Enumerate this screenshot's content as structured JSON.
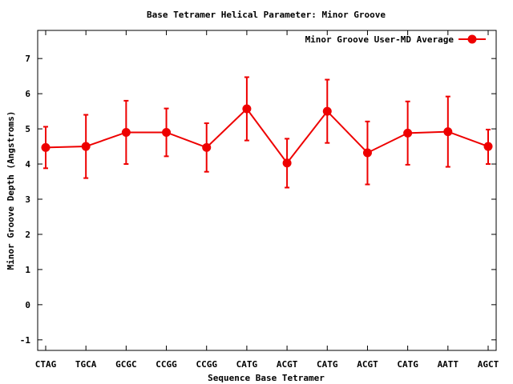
{
  "chart_data": {
    "type": "line",
    "title": "Base Tetramer Helical Parameter: Minor Groove",
    "xlabel": "Sequence Base Tetramer",
    "ylabel": "Minor Groove Depth (Angstroms)",
    "categories": [
      "CTAG",
      "TGCA",
      "GCGC",
      "CCGG",
      "CCGG",
      "CATG",
      "ACGT",
      "CATG",
      "ACGT",
      "CATG",
      "AATT",
      "AGCT"
    ],
    "ylim": [
      -1.3,
      7.8
    ],
    "yticks": [
      -1,
      0,
      1,
      2,
      3,
      4,
      5,
      6,
      7
    ],
    "grid": false,
    "legend_position": "top-right",
    "color": "#ee0000",
    "series": [
      {
        "name": "Minor Groove User-MD Average",
        "values": [
          4.47,
          4.5,
          4.9,
          4.9,
          4.47,
          5.57,
          4.03,
          5.5,
          4.32,
          4.88,
          4.92,
          4.5
        ],
        "error_low": [
          3.88,
          3.6,
          4.0,
          4.22,
          3.78,
          4.67,
          3.33,
          4.6,
          3.42,
          3.98,
          3.92,
          4.0
        ],
        "error_high": [
          5.06,
          5.4,
          5.8,
          5.58,
          5.16,
          6.47,
          4.72,
          6.4,
          5.21,
          5.78,
          5.92,
          4.98
        ]
      }
    ]
  }
}
